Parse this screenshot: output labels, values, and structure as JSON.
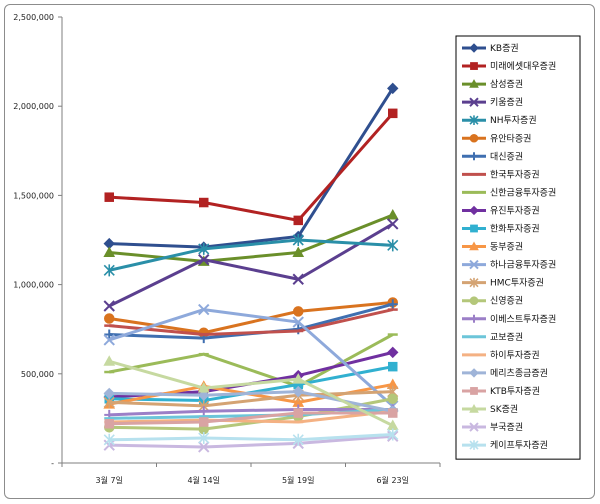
{
  "chart_data": {
    "type": "line",
    "title": "",
    "xlabel": "",
    "ylabel": "",
    "categories": [
      "3월 7일",
      "4월 14일",
      "5월 19일",
      "6월 23일"
    ],
    "ylim": [
      0,
      2500000
    ],
    "yticks": [
      0,
      500000,
      1000000,
      1500000,
      2000000,
      2500000
    ],
    "ytick_labels": [
      "-",
      "500,000",
      "1,000,000",
      "1,500,000",
      "2,000,000",
      "2,500,000"
    ],
    "grid": false,
    "legend_position": "right",
    "series": [
      {
        "name": "KB증권",
        "color": "#2f4f8f",
        "marker": "diamond",
        "values": [
          1230000,
          1210000,
          1270000,
          2100000
        ]
      },
      {
        "name": "미래에셋대우증권",
        "color": "#b22222",
        "marker": "square",
        "values": [
          1490000,
          1460000,
          1360000,
          1960000
        ]
      },
      {
        "name": "삼성증권",
        "color": "#6a8f2a",
        "marker": "triangle",
        "values": [
          1180000,
          1130000,
          1180000,
          1390000
        ]
      },
      {
        "name": "키움증권",
        "color": "#5b3f8f",
        "marker": "x",
        "values": [
          880000,
          1140000,
          1030000,
          1340000
        ]
      },
      {
        "name": "NH투자증권",
        "color": "#2a8fa8",
        "marker": "star",
        "values": [
          1080000,
          1200000,
          1250000,
          1220000
        ]
      },
      {
        "name": "유안타증권",
        "color": "#d9731f",
        "marker": "circle",
        "values": [
          810000,
          730000,
          850000,
          900000
        ]
      },
      {
        "name": "대신증권",
        "color": "#3f6fb0",
        "marker": "plus",
        "values": [
          720000,
          700000,
          750000,
          890000
        ]
      },
      {
        "name": "한국투자증권",
        "color": "#c0504d",
        "marker": "dash",
        "values": [
          770000,
          720000,
          740000,
          860000
        ]
      },
      {
        "name": "신한금융투자증권",
        "color": "#9bbb59",
        "marker": "dash",
        "values": [
          510000,
          610000,
          430000,
          720000
        ]
      },
      {
        "name": "유진투자증권",
        "color": "#7030a0",
        "marker": "diamond",
        "values": [
          370000,
          400000,
          490000,
          620000
        ]
      },
      {
        "name": "한화투자증권",
        "color": "#31b0d0",
        "marker": "square",
        "values": [
          360000,
          350000,
          440000,
          540000
        ]
      },
      {
        "name": "동부증권",
        "color": "#f79646",
        "marker": "triangle",
        "values": [
          330000,
          430000,
          340000,
          440000
        ]
      },
      {
        "name": "하나금융투자증권",
        "color": "#8ea9db",
        "marker": "x",
        "values": [
          690000,
          860000,
          790000,
          320000
        ]
      },
      {
        "name": "HMC투자증권",
        "color": "#d4a373",
        "marker": "star",
        "values": [
          340000,
          320000,
          380000,
          400000
        ]
      },
      {
        "name": "신영증권",
        "color": "#b4c77a",
        "marker": "circle",
        "values": [
          200000,
          190000,
          260000,
          360000
        ]
      },
      {
        "name": "이베스트투자증권",
        "color": "#9b7fc7",
        "marker": "plus",
        "values": [
          270000,
          290000,
          300000,
          300000
        ]
      },
      {
        "name": "교보증권",
        "color": "#6cc5d9",
        "marker": "dash",
        "values": [
          250000,
          260000,
          270000,
          300000
        ]
      },
      {
        "name": "하이투자증권",
        "color": "#f4b183",
        "marker": "dash",
        "values": [
          230000,
          240000,
          230000,
          290000
        ]
      },
      {
        "name": "메리츠종금증권",
        "color": "#9fb4d8",
        "marker": "diamond",
        "values": [
          390000,
          380000,
          400000,
          290000
        ]
      },
      {
        "name": "KTB투자증권",
        "color": "#d9a3a3",
        "marker": "square",
        "values": [
          220000,
          230000,
          280000,
          280000
        ]
      },
      {
        "name": "SK증권",
        "color": "#c6d9a0",
        "marker": "triangle",
        "values": [
          570000,
          420000,
          470000,
          210000
        ]
      },
      {
        "name": "부국증권",
        "color": "#c9b8e0",
        "marker": "x",
        "values": [
          100000,
          90000,
          110000,
          150000
        ]
      },
      {
        "name": "케이프투자증권",
        "color": "#b7e1ee",
        "marker": "star",
        "values": [
          130000,
          140000,
          130000,
          160000
        ]
      }
    ]
  }
}
